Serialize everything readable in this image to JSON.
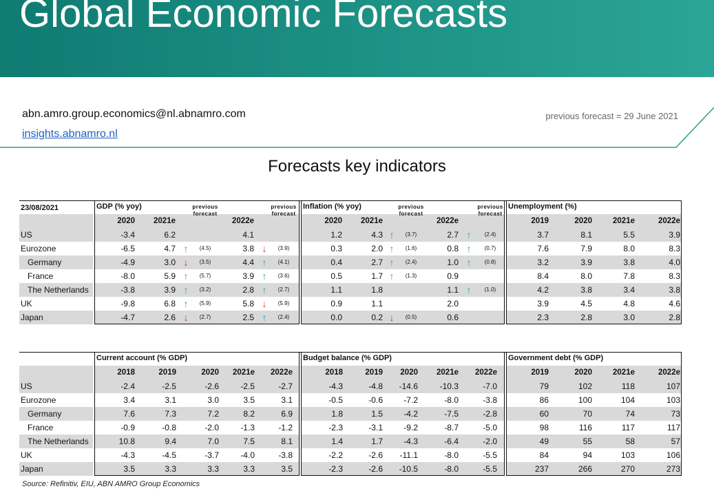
{
  "header": {
    "title": "Global Economic Forecasts",
    "email": "abn.amro.group.economics@nl.abnamro.com",
    "link": "insights.abnamro.nl",
    "note": "previous forecast = 29 June 2021"
  },
  "section_title": "Forecasts key indicators",
  "tables": [
    {
      "date": "23/08/2021",
      "groups": [
        {
          "title": "GDP (% yoy)",
          "columns": [
            "2020",
            "2021e",
            null,
            "previous forecast",
            "2022e",
            null,
            "previous forecast"
          ]
        },
        {
          "title": "Inflation (% yoy)",
          "columns": [
            "2020",
            "2021e",
            null,
            "previous forecast",
            "2022e",
            null,
            "previous forecast"
          ]
        },
        {
          "title": "Unemployment (%)",
          "columns": [
            "2019",
            "2020",
            "2021e",
            "2022e"
          ]
        }
      ],
      "rows": [
        {
          "label": "US",
          "cells": [
            "-3.4",
            "6.2",
            null,
            null,
            "4.1",
            null,
            null,
            "1.2",
            "4.3",
            "↑",
            "(3.7)",
            "2.7",
            "↑",
            "(2.4)",
            "3.7",
            "8.1",
            "5.5",
            "3.9"
          ]
        },
        {
          "label": "Eurozone",
          "cells": [
            "-6.5",
            "4.7",
            "↑",
            "(4.5)",
            "3.8",
            "↓",
            "(3.9)",
            "0.3",
            "2.0",
            "↑",
            "(1.6)",
            "0.8",
            "↑",
            "(0.7)",
            "7.6",
            "7.9",
            "8.0",
            "8.3"
          ]
        },
        {
          "label": "Germany",
          "cells": [
            "-4.9",
            "3.0",
            "↓",
            "(3.5)",
            "4.4",
            "↑",
            "(4.1)",
            "0.4",
            "2.7",
            "↑",
            "(2.4)",
            "1.0",
            "↑",
            "(0.8)",
            "3.2",
            "3.9",
            "3.8",
            "4.0"
          ]
        },
        {
          "label": "France",
          "cells": [
            "-8.0",
            "5.9",
            "↑",
            "(5.7)",
            "3.9",
            "↑",
            "(3.6)",
            "0.5",
            "1.7",
            "↑",
            "(1.3)",
            "0.9",
            null,
            null,
            "8.4",
            "8.0",
            "7.8",
            "8.3"
          ]
        },
        {
          "label": "The Netherlands",
          "cells": [
            "-3.8",
            "3.9",
            "↑",
            "(3.2)",
            "2.8",
            "↑",
            "(2.7)",
            "1.1",
            "1.8",
            null,
            null,
            "1.1",
            "↑",
            "(1.0)",
            "4.2",
            "3.8",
            "3.4",
            "3.8"
          ]
        },
        {
          "label": "UK",
          "cells": [
            "-9.8",
            "6.8",
            "↑",
            "(5.9)",
            "5.8",
            "↓",
            "(5.9)",
            "0.9",
            "1.1",
            null,
            null,
            "2.0",
            null,
            null,
            "3.9",
            "4.5",
            "4.8",
            "4.6"
          ]
        },
        {
          "label": "Japan",
          "cells": [
            "-4.7",
            "2.6",
            "↓",
            "(2.7)",
            "2.5",
            "↑",
            "(2.4)",
            "0.0",
            "0.2",
            "↓",
            "(0.5)",
            "0.6",
            null,
            null,
            "2.3",
            "2.8",
            "3.0",
            "2.8"
          ]
        }
      ]
    },
    {
      "groups": [
        {
          "title": "Current account (% GDP)",
          "columns": [
            "2018",
            "2019",
            "2020",
            "2021e",
            "2022e"
          ]
        },
        {
          "title": "Budget balance (% GDP)",
          "columns": [
            "2018",
            "2019",
            "2020",
            "2021e",
            "2022e"
          ]
        },
        {
          "title": "Government debt (% GDP)",
          "columns": [
            "2019",
            "2020",
            "2021e",
            "2022e"
          ]
        }
      ],
      "rows": [
        {
          "label": "US",
          "cells": [
            "-2.4",
            "-2.5",
            "-2.6",
            "-2.5",
            "-2.7",
            "-4.3",
            "-4.8",
            "-14.6",
            "-10.3",
            "-7.0",
            "79",
            "102",
            "118",
            "107"
          ]
        },
        {
          "label": "Eurozone",
          "cells": [
            "3.4",
            "3.1",
            "3.0",
            "3.5",
            "3.1",
            "-0.5",
            "-0.6",
            "-7.2",
            "-8.0",
            "-3.8",
            "86",
            "100",
            "104",
            "103"
          ]
        },
        {
          "label": "Germany",
          "cells": [
            "7.6",
            "7.3",
            "7.2",
            "8.2",
            "6.9",
            "1.8",
            "1.5",
            "-4.2",
            "-7.5",
            "-2.8",
            "60",
            "70",
            "74",
            "73"
          ]
        },
        {
          "label": "France",
          "cells": [
            "-0.9",
            "-0.8",
            "-2.0",
            "-1.3",
            "-1.2",
            "-2.3",
            "-3.1",
            "-9.2",
            "-8.7",
            "-5.0",
            "98",
            "116",
            "117",
            "117"
          ]
        },
        {
          "label": "The Netherlands",
          "cells": [
            "10.8",
            "9.4",
            "7.0",
            "7.5",
            "8.1",
            "1.4",
            "1.7",
            "-4.3",
            "-6.4",
            "-2.0",
            "49",
            "55",
            "58",
            "57"
          ]
        },
        {
          "label": "UK",
          "cells": [
            "-4.3",
            "-4.5",
            "-3.7",
            "-4.0",
            "-3.8",
            "-2.2",
            "-2.6",
            "-11.1",
            "-8.0",
            "-5.5",
            "84",
            "94",
            "103",
            "106"
          ]
        },
        {
          "label": "Japan",
          "cells": [
            "3.5",
            "3.3",
            "3.3",
            "3.3",
            "3.5",
            "-2.3",
            "-2.6",
            "-10.5",
            "-8.0",
            "-5.5",
            "237",
            "266",
            "270",
            "273"
          ]
        }
      ]
    }
  ],
  "source": "Source: Refinitiv, EIU, ABN AMRO Group Economics"
}
